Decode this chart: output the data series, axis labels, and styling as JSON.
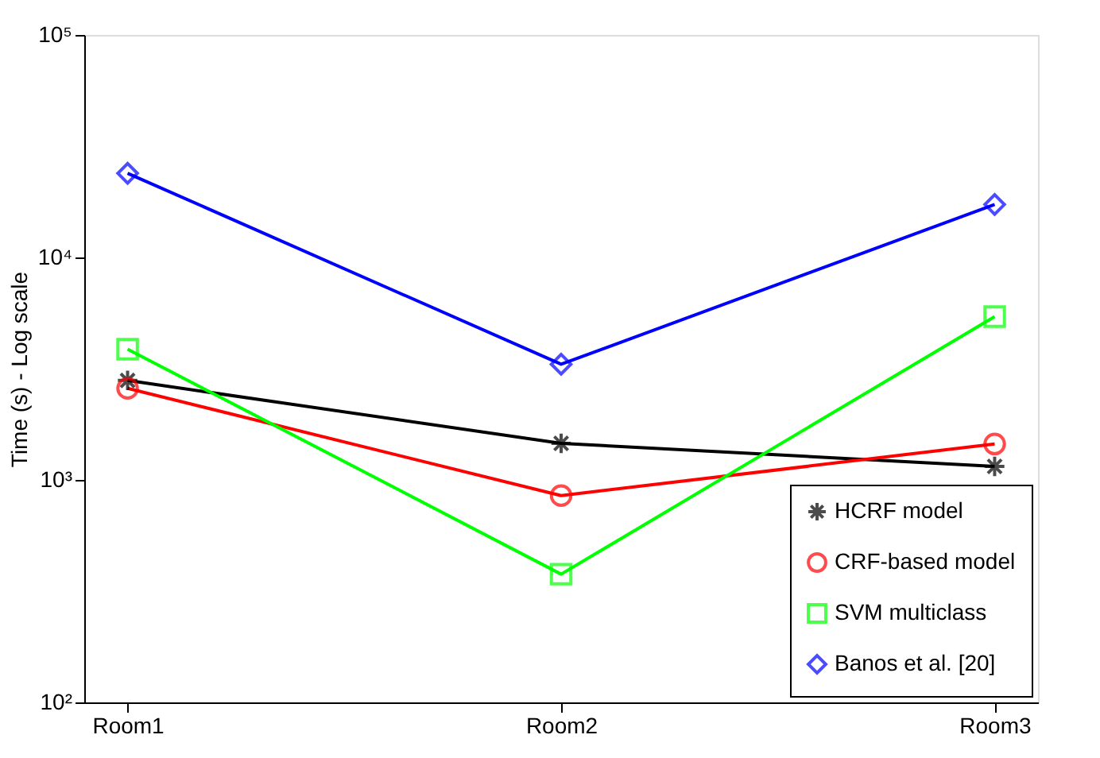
{
  "chart_data": {
    "type": "line",
    "ylabel": "Time (s) - Log scale",
    "categories": [
      "Room1",
      "Room2",
      "Room3"
    ],
    "log": true,
    "ylim": [
      100,
      100000
    ],
    "yticks": [
      {
        "value": 100,
        "label": "10²"
      },
      {
        "value": 1000,
        "label": "10³"
      },
      {
        "value": 10000,
        "label": "10⁴"
      },
      {
        "value": 100000,
        "label": "10⁵"
      }
    ],
    "grid": false,
    "legend": "bottom right",
    "line_style": "solid",
    "series": [
      {
        "name": "HCRF model",
        "color": "#000000",
        "marker": "cross",
        "values": [
          2800,
          1460,
          1150
        ]
      },
      {
        "name": "CRF-based model",
        "color": "#ff0000",
        "marker": "circle",
        "values": [
          2580,
          850,
          1450
        ]
      },
      {
        "name": "SVM multiclass",
        "color": "#00ff00",
        "marker": "square",
        "values": [
          3870,
          377,
          5420
        ]
      },
      {
        "name": "Banos et al. [20]",
        "color": "#0000ff",
        "marker": "diamond",
        "values": [
          23900,
          3310,
          17300
        ]
      }
    ]
  }
}
